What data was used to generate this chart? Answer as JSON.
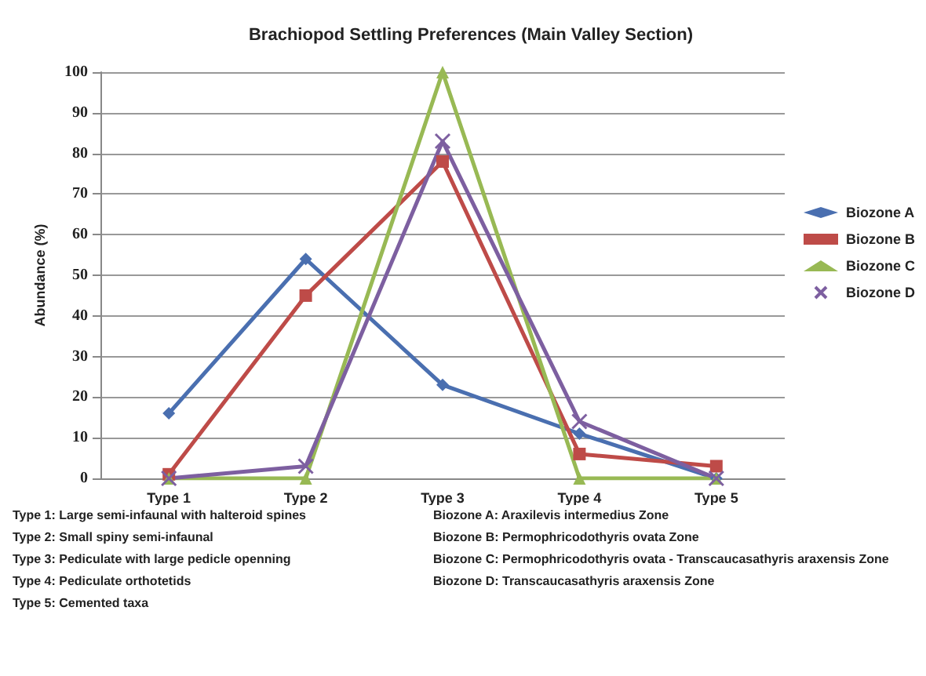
{
  "chart_data": {
    "type": "line",
    "title": "Brachiopod Settling Preferences (Main Valley Section)",
    "ylabel": "Abundance (%)",
    "categories": [
      "Type 1",
      "Type 2",
      "Type 3",
      "Type 4",
      "Type 5"
    ],
    "series": [
      {
        "name": "Biozone A",
        "color": "#4a6fb0",
        "marker": "diamond",
        "values": [
          16,
          54,
          23,
          11,
          0
        ]
      },
      {
        "name": "Biozone B",
        "color": "#be4b48",
        "marker": "square",
        "values": [
          1,
          45,
          78,
          6,
          3
        ]
      },
      {
        "name": "Biozone C",
        "color": "#98b954",
        "marker": "triangle",
        "values": [
          0,
          0,
          100,
          0,
          0
        ]
      },
      {
        "name": "Biozone D",
        "color": "#7d5fa0",
        "marker": "cross",
        "values": [
          0,
          3,
          83,
          14,
          0
        ]
      }
    ],
    "ylim": [
      0,
      100
    ],
    "yticks": [
      0,
      10,
      20,
      30,
      40,
      50,
      60,
      70,
      80,
      90,
      100
    ],
    "grid": "y",
    "legend": "right",
    "line_style": "solid",
    "annotations": [
      "Type 1: Large semi-infaunal with halteroid spines",
      "Type 2: Small spiny semi-infaunal",
      "Type 3: Pediculate with large pedicle openning",
      "Type 4: Pediculate orthotetids",
      "Type 5: Cemented taxa",
      "Biozone A: Araxilevis intermedius Zone",
      "Biozone B: Permophricodothyris ovata Zone",
      "Biozone C: Permophricodothyris ovata - Transcaucasathyris araxensis Zone",
      "Biozone D: Transcaucasathyris araxensis Zone"
    ]
  }
}
